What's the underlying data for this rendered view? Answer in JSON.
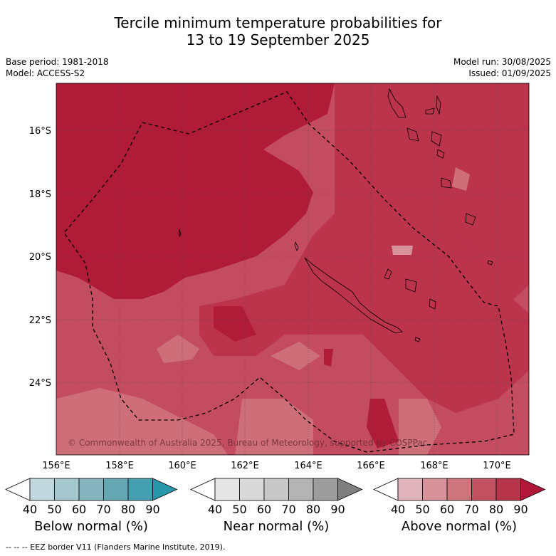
{
  "title_line1": "Tercile minimum temperature probabilities for",
  "title_line2": "13 to 19 September 2025",
  "base_period": "Base period: 1981-2018",
  "model": "Model: ACCESS-S2",
  "model_run": "Model run: 30/08/2025",
  "issued": "Issued: 01/09/2025",
  "copyright": "© Commonwealth of Australia 2025, Bureau of Meteorology, supported by COSPPac",
  "lat_labels": [
    "16°S",
    "18°S",
    "20°S",
    "22°S",
    "24°S"
  ],
  "lon_labels": [
    "156°E",
    "158°E",
    "160°E",
    "162°E",
    "164°E",
    "166°E",
    "168°E",
    "170°E"
  ],
  "colorbars": [
    {
      "label": "Below normal (%)",
      "ticks": [
        "40",
        "50",
        "60",
        "70",
        "80",
        "90"
      ],
      "colors": [
        "#ffffff",
        "#c0d7de",
        "#a4c7cd",
        "#86b5bf",
        "#65a6b3",
        "#44a0b0",
        "#2796a8"
      ]
    },
    {
      "label": "Near normal (%)",
      "ticks": [
        "40",
        "50",
        "60",
        "70",
        "80",
        "90"
      ],
      "colors": [
        "#ffffff",
        "#e6e6e6",
        "#d9d9d9",
        "#c8c8c8",
        "#b4b4b4",
        "#9c9c9c",
        "#7f7f7f"
      ]
    },
    {
      "label": "Above normal (%)",
      "ticks": [
        "40",
        "50",
        "60",
        "70",
        "80",
        "90"
      ],
      "colors": [
        "#ffffff",
        "#e1b4bc",
        "#d89299",
        "#cd747c",
        "#c25261",
        "#b8344a",
        "#b0183a"
      ]
    }
  ],
  "footnote": "--  --  -- EEZ border V11 (Flanders Marine Institute, 2019).",
  "colors": {
    "above_90": "#b01c38",
    "above_80": "#bb344c",
    "above_70": "#c34c60",
    "above_60": "#cd6e78",
    "above_50": "#d89299"
  }
}
